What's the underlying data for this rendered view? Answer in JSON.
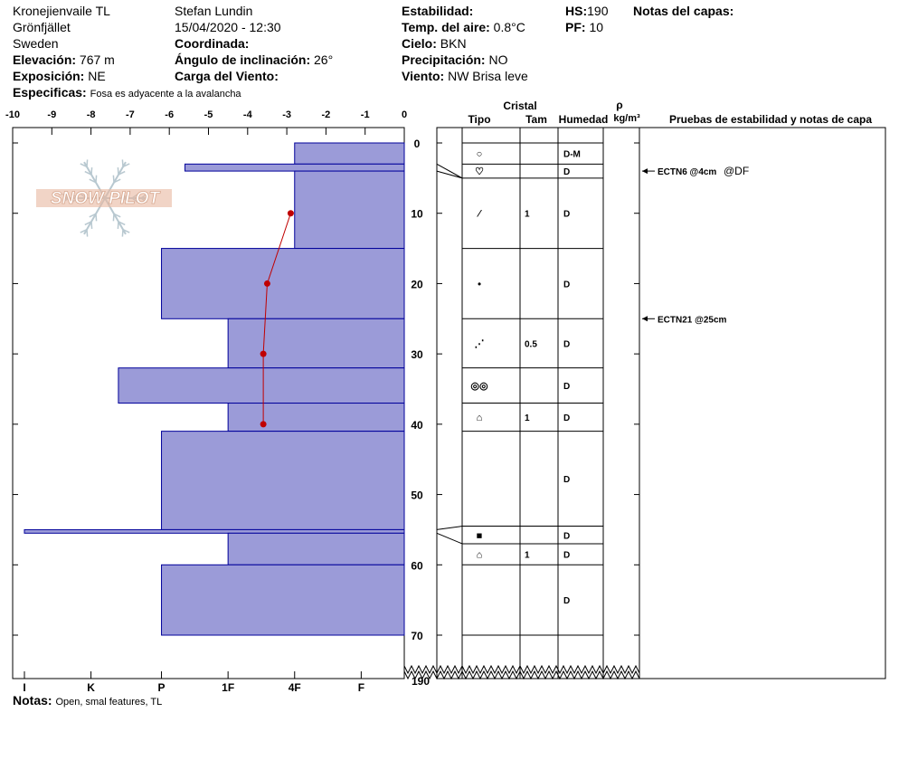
{
  "header": {
    "location": "Kronejienvaile TL",
    "region": "Grönfjället",
    "country": "Sweden",
    "elevation_label": "Elevación:",
    "elevation_value": "767 m",
    "aspect_label": "Exposición:",
    "aspect_value": "NE",
    "specifics_label": "Especificas:",
    "specifics_value": "Fosa es adyacente a la avalancha",
    "observer": "Stefan Lundin",
    "datetime": "15/04/2020 - 12:30",
    "coord_label": "Coordinada:",
    "slope_label": "Ángulo de inclinación:",
    "slope_value": "26°",
    "wind_load_label": "Carga del Viento:",
    "stability_label": "Estabilidad:",
    "air_temp_label": "Temp. del aire:",
    "air_temp_value": "0.8°C",
    "sky_label": "Cielo:",
    "sky_value": "BKN",
    "precip_label": "Precipitación:",
    "precip_value": "NO",
    "wind_label": "Viento:",
    "wind_value": "NW Brisa leve",
    "hs_label": "HS:",
    "hs_value": "190",
    "pf_label": "PF:",
    "pf_value": "10",
    "layer_notes_label": "Notas del capas:"
  },
  "footer": {
    "notes_label": "Notas:",
    "notes_value": "Open, smal features, TL"
  },
  "logo_text": "SNOW PILOT",
  "columns": {
    "cristal": "Cristal",
    "tipo": "Tipo",
    "tam": "Tam",
    "humedad": "Humedad",
    "rho": "ρ",
    "density_unit": "kg/m³",
    "tests": "Pruebas de estabilidad y notas de capa"
  },
  "chart_data": {
    "type": "bar",
    "orientation": "horizontal",
    "x_axis_label_top": [
      "-10",
      "-9",
      "-8",
      "-7",
      "-6",
      "-5",
      "-4",
      "-3",
      "-2",
      "-1",
      "0"
    ],
    "xlim": [
      -10,
      0
    ],
    "hardness_labels": [
      "I",
      "K",
      "P",
      "1F",
      "4F",
      "F"
    ],
    "ylim": [
      0,
      70
    ],
    "y_ticks": [
      "0",
      "10",
      "20",
      "30",
      "40",
      "50",
      "60",
      "70"
    ],
    "y_break_label": "190",
    "colors": {
      "layer_fill": "#9b9bd8",
      "layer_stroke": "#00009a",
      "temp_line": "#c00000"
    },
    "layers": [
      {
        "top": 0,
        "bottom": 3,
        "hardness": -2.8,
        "tipo": "circle",
        "tam": "",
        "humedad": "D-M"
      },
      {
        "top": 3,
        "bottom": 4,
        "hardness": -5.6,
        "tipo": "",
        "tam": "",
        "humedad": ""
      },
      {
        "top": 4,
        "bottom": 15,
        "hardness": -2.8,
        "tipo": "",
        "tam": "",
        "humedad": ""
      },
      {
        "top": 15,
        "bottom": 25,
        "hardness": -6.2,
        "tipo": "",
        "tam": "",
        "humedad": ""
      },
      {
        "top": 25,
        "bottom": 32,
        "hardness": -4.5,
        "tipo": "",
        "tam": "",
        "humedad": ""
      },
      {
        "top": 32,
        "bottom": 37,
        "hardness": -7.3,
        "tipo": "",
        "tam": "",
        "humedad": ""
      },
      {
        "top": 37,
        "bottom": 41,
        "hardness": -4.5,
        "tipo": "",
        "tam": "",
        "humedad": ""
      },
      {
        "top": 41,
        "bottom": 55,
        "hardness": -6.2,
        "tipo": "",
        "tam": "",
        "humedad": ""
      },
      {
        "top": 55,
        "bottom": 55.5,
        "hardness": -9.7,
        "tipo": "",
        "tam": "",
        "humedad": ""
      },
      {
        "top": 55.5,
        "bottom": 60,
        "hardness": -4.5,
        "tipo": "",
        "tam": "",
        "humedad": ""
      },
      {
        "top": 60,
        "bottom": 70,
        "hardness": -6.2,
        "tipo": "",
        "tam": "",
        "humedad": ""
      }
    ],
    "temperature_profile": [
      {
        "depth": 10,
        "temp": -2.9
      },
      {
        "depth": 20,
        "temp": -3.5
      },
      {
        "depth": 30,
        "temp": -3.6
      },
      {
        "depth": 40,
        "temp": -3.6
      }
    ]
  },
  "strat_rows": [
    {
      "top": 0,
      "bottom": 3,
      "tipo": "○",
      "tam": "",
      "humedad": "D-M"
    },
    {
      "top": 3,
      "bottom": 5,
      "tipo": "♡",
      "tam": "",
      "humedad": "D"
    },
    {
      "top": 5,
      "bottom": 15,
      "tipo": "⁄",
      "tam": "1",
      "humedad": "D"
    },
    {
      "top": 15,
      "bottom": 25,
      "tipo": "•",
      "tam": "",
      "humedad": "D"
    },
    {
      "top": 25,
      "bottom": 32,
      "tipo": "⋰",
      "tam": "0.5",
      "humedad": "D"
    },
    {
      "top": 32,
      "bottom": 37,
      "tipo": "◎◎",
      "tam": "",
      "humedad": "D"
    },
    {
      "top": 37,
      "bottom": 41,
      "tipo": "⌂",
      "tam": "1",
      "humedad": "D"
    },
    {
      "top": 41,
      "bottom": 54.5,
      "tipo": "",
      "tam": "",
      "humedad": "D"
    },
    {
      "top": 54.5,
      "bottom": 57,
      "tipo": "■",
      "tam": "",
      "humedad": "D"
    },
    {
      "top": 57,
      "bottom": 60,
      "tipo": "⌂",
      "tam": "1",
      "humedad": "D"
    },
    {
      "top": 60,
      "bottom": 70,
      "tipo": "",
      "tam": "",
      "humedad": "D"
    }
  ],
  "tests": [
    {
      "depth": 4,
      "text": "ECTN6 @4cm",
      "extra": "@DF"
    },
    {
      "depth": 25,
      "text": "ECTN21 @25cm",
      "extra": ""
    }
  ]
}
